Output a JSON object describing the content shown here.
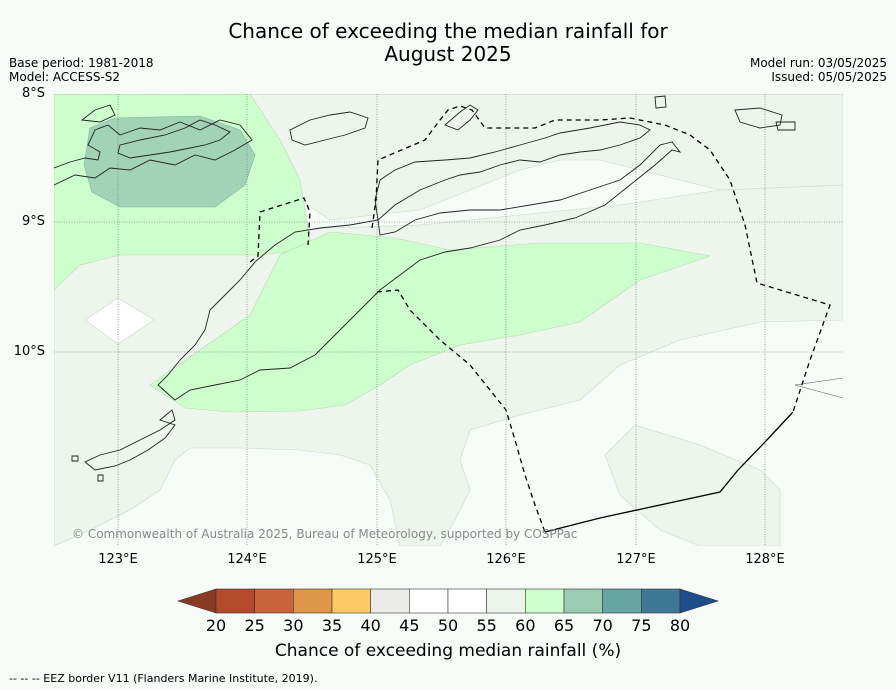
{
  "title_line1": "Chance of exceeding the median rainfall for",
  "title_line2": "August 2025",
  "meta_left": [
    "Base period: 1981-2018",
    "Model: ACCESS-S2"
  ],
  "meta_right": [
    "Model run: 03/05/2025",
    "Issued: 05/05/2025"
  ],
  "lat_labels": [
    "8°S",
    "9°S",
    "10°S"
  ],
  "lon_labels": [
    "123°E",
    "124°E",
    "125°E",
    "126°E",
    "127°E",
    "128°E"
  ],
  "copyright": "© Commonwealth of Australia 2025, Bureau of Meteorology, supported by COSPPac",
  "colorbar": {
    "ticks": [
      "20",
      "25",
      "30",
      "35",
      "40",
      "45",
      "50",
      "55",
      "60",
      "65",
      "70",
      "75",
      "80"
    ],
    "colors": [
      "#b34a2a",
      "#c8643a",
      "#e0964a",
      "#fdc866",
      "#ebebe8",
      "#ffffff",
      "#ffffff",
      "#edf5ec",
      "#ccffcc",
      "#99ccb3",
      "#66a3a3",
      "#3f7796"
    ],
    "under_color": "#8a3a22",
    "over_color": "#1c4f8a",
    "title": "Chance of exceeding median rainfall (%)"
  },
  "eez_note": "--  --  -- EEZ border V11 (Flanders Marine Institute, 2019)."
}
